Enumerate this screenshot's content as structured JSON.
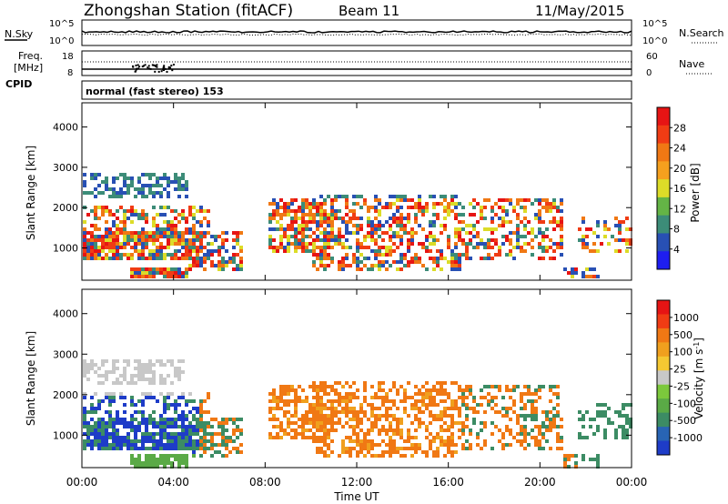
{
  "header": {
    "station": "Zhongshan Station (fitACF)",
    "beam": "Beam 11",
    "date": "11/May/2015"
  },
  "labels": {
    "nsky": "N.Sky",
    "nsearch": "N.Search",
    "freq_line1": "Freq.",
    "freq_line2": "[MHz]",
    "cpid": "CPID",
    "nave": "Nave",
    "mode": "normal (fast stereo) 153",
    "exp_low": "10^0",
    "exp_high": "10^5",
    "freq_top": "18",
    "freq_bot": "8",
    "nave_top": "60",
    "nave_bot": "0"
  },
  "chart_data": [
    {
      "type": "heatmap",
      "panel": "power",
      "ylabel": "Slant Range [km]",
      "colorbar_label": "Power [dB]",
      "colorbar_ticks": [
        4,
        8,
        12,
        16,
        20,
        24,
        28
      ],
      "colorbar_range": [
        0,
        30
      ],
      "colors": [
        "#1e1ef0",
        "#2850b4",
        "#3c8c78",
        "#64b446",
        "#dcdc28",
        "#f5a01e",
        "#f07814",
        "#f03c14",
        "#e61414"
      ],
      "ylim": [
        200,
        4600
      ],
      "yticks": [
        1000,
        2000,
        3000,
        4000
      ],
      "xticks": [
        "00:00",
        "04:00",
        "08:00",
        "12:00",
        "16:00",
        "20:00",
        "00:00"
      ],
      "xlim_hours": [
        0,
        24
      ]
    },
    {
      "type": "heatmap",
      "panel": "velocity",
      "ylabel": "Slant Range [km]",
      "colorbar_label": "Velocity [m s^-1]",
      "colorbar_ticks": [
        "1000",
        "500",
        "100",
        "25",
        "-25",
        "-100",
        "-500",
        "-1000"
      ],
      "colors": [
        "#1e3cc8",
        "#2864b4",
        "#3c8c64",
        "#5aaa46",
        "#7cc83c",
        "#c8c8c8",
        "#f5c832",
        "#f0a01e",
        "#f07814",
        "#f03c14",
        "#e61414"
      ],
      "ylim": [
        200,
        4600
      ],
      "yticks": [
        1000,
        2000,
        3000,
        4000
      ],
      "xticks": [
        "00:00",
        "04:00",
        "08:00",
        "12:00",
        "16:00",
        "20:00",
        "00:00"
      ],
      "xlim_hours": [
        0,
        24
      ],
      "xlabel": "Time UT"
    }
  ]
}
